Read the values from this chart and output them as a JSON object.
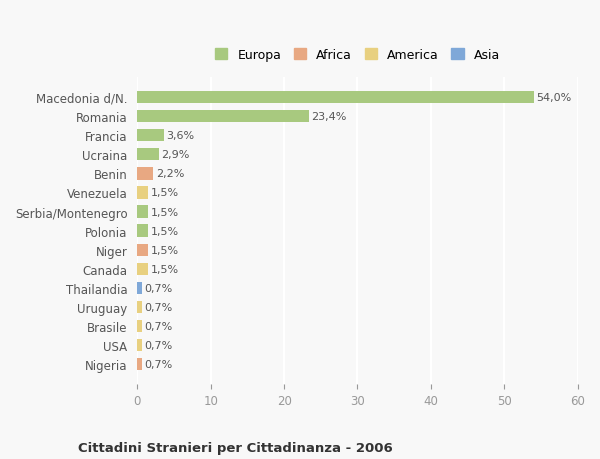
{
  "categories": [
    "Nigeria",
    "USA",
    "Brasile",
    "Uruguay",
    "Thailandia",
    "Canada",
    "Niger",
    "Polonia",
    "Serbia/Montenegro",
    "Venezuela",
    "Benin",
    "Ucraina",
    "Francia",
    "Romania",
    "Macedonia d/N."
  ],
  "values": [
    0.7,
    0.7,
    0.7,
    0.7,
    0.7,
    1.5,
    1.5,
    1.5,
    1.5,
    1.5,
    2.2,
    2.9,
    3.6,
    23.4,
    54.0
  ],
  "labels": [
    "0,7%",
    "0,7%",
    "0,7%",
    "0,7%",
    "0,7%",
    "1,5%",
    "1,5%",
    "1,5%",
    "1,5%",
    "1,5%",
    "2,2%",
    "2,9%",
    "3,6%",
    "23,4%",
    "54,0%"
  ],
  "continents": [
    "Africa",
    "America",
    "America",
    "America",
    "Asia",
    "America",
    "Africa",
    "Europa",
    "Europa",
    "America",
    "Africa",
    "Europa",
    "Europa",
    "Europa",
    "Europa"
  ],
  "colors": {
    "Europa": "#a8c97f",
    "Africa": "#e8a882",
    "America": "#e8d080",
    "Asia": "#7fa8d8"
  },
  "legend_items": [
    {
      "label": "Europa",
      "color": "#a8c97f"
    },
    {
      "label": "Africa",
      "color": "#e8a882"
    },
    {
      "label": "America",
      "color": "#e8d080"
    },
    {
      "label": "Asia",
      "color": "#7fa8d8"
    }
  ],
  "xlim": [
    0,
    60
  ],
  "xticks": [
    0,
    10,
    20,
    30,
    40,
    50,
    60
  ],
  "title1": "Cittadini Stranieri per Cittadinanza - 2006",
  "background_color": "#f8f8f8",
  "grid_color": "#ffffff",
  "bar_height": 0.65
}
